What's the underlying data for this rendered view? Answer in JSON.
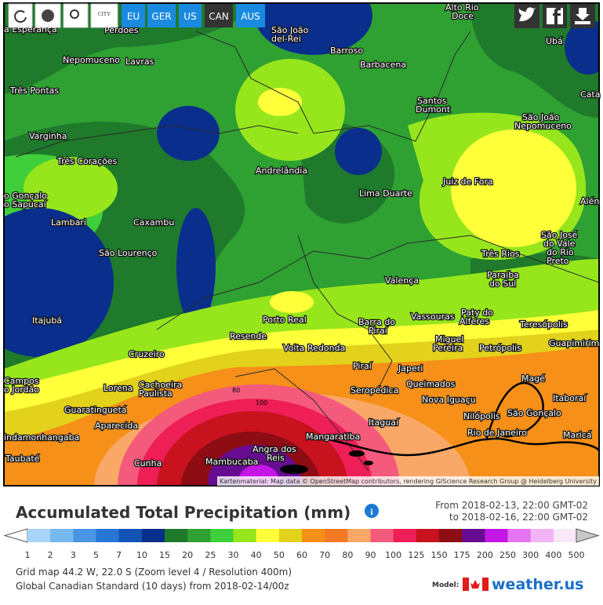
{
  "toolbar": {
    "city": "CITY",
    "regions": [
      "EU",
      "GER",
      "US",
      "CAN",
      "AUS"
    ]
  },
  "map": {
    "cities": [
      "a Esperança",
      "Perdões",
      "São João",
      "del-Rei",
      "Alto Rio",
      "Doce",
      "Ubá",
      "Nepomuceno",
      "Lavras",
      "Barroso",
      "Barbacena",
      "Três Pontas",
      "Santos",
      "Dumont",
      "São João",
      "Nepomuceno",
      "Cata",
      "Varginha",
      "Três Corações",
      "Andrelândia",
      "Lima Duarte",
      "Juiz de Fora",
      "o Gonçalo",
      "o Sapucaí",
      "Alén",
      "Lambari",
      "Caxambu",
      "São José",
      "do Vale",
      "do Rio",
      "Preto",
      "São Lourenço",
      "Três Rios",
      "Paraíba",
      "do Sul",
      "Valença",
      "Itajubá",
      "Porto Real",
      "Vassouras",
      "Paty do",
      "Alferes",
      "Teresópolis",
      "Resende",
      "Barra do",
      "Piraí",
      "Miguel",
      "Pereira",
      "Volta Redonda",
      "Petrópolis",
      "Guapimirim",
      "Cruzeiro",
      "Piraí",
      "Japeri",
      "Magé",
      "Campos",
      "o Jordão",
      "Lorena",
      "Cachoeira",
      "Paulista",
      "Queimados",
      "Seropédica",
      "Itaboraí",
      "Nova Iguaçu",
      "Guaratinguetá",
      "Nilópolis",
      "São Gonçalo",
      "Itaguaí",
      "Aparecida",
      "Rio de Janeiro",
      "Maricá",
      "indamonhangaba",
      "Mangaratiba",
      "Angra dos",
      "Reis",
      "Taubaté",
      "Cunha",
      "Mambucaba"
    ],
    "contour_labels": [
      80,
      100
    ],
    "attribution": "Kartenmaterial: Map data © OpenStreetMap contributors, rendering GIScience Research Group @ Heidelberg University"
  },
  "panel": {
    "title": "Accumulated Total Precipitation (mm)",
    "from": "From 2018-02-13, 22:00 GMT-02",
    "to": "to 2018-02-16, 22:00 GMT-02",
    "legend": {
      "labels": [
        1,
        2,
        3,
        5,
        7,
        10,
        15,
        20,
        25,
        30,
        40,
        50,
        60,
        70,
        80,
        90,
        100,
        125,
        150,
        175,
        200,
        250,
        300,
        400,
        500
      ],
      "colors": [
        "#a7d4f7",
        "#78b8f0",
        "#4a96e6",
        "#2576d6",
        "#1254b6",
        "#0a2e8c",
        "#1f7a2c",
        "#2fa132",
        "#3fcf3a",
        "#97e61c",
        "#ffff3a",
        "#e2d21c",
        "#f69018",
        "#f37a22",
        "#f9a868",
        "#f45a7c",
        "#ee1e56",
        "#c8121e",
        "#8e0c14",
        "#660c90",
        "#c416e4",
        "#e474f2",
        "#f2b4f6",
        "#f8e8f8"
      ]
    },
    "grid_info": "Grid map 44.2 W, 22.0 S (Zoom level 4 / Resolution 400m)",
    "model_info": "Global Canadian Standard  (10 days)  from 2018-02-14/00z",
    "model_label": "Model:",
    "brand": "weather.us"
  }
}
